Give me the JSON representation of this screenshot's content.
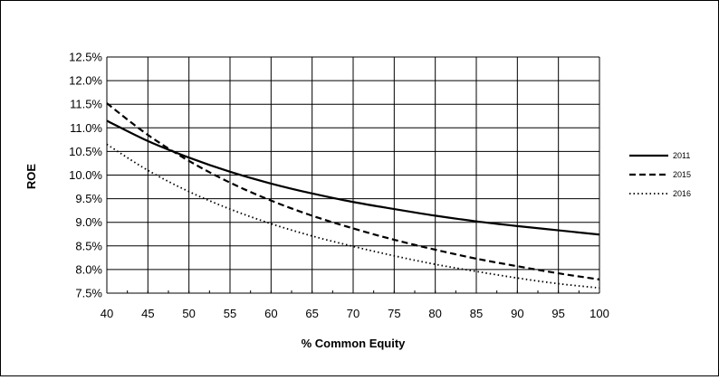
{
  "chart_data": {
    "type": "line",
    "title": "",
    "xlabel": "% Common Equity",
    "ylabel": "ROE",
    "xlim": [
      40,
      100
    ],
    "ylim": [
      7.5,
      12.5
    ],
    "x_ticks": [
      "40",
      "45",
      "50",
      "55",
      "60",
      "65",
      "70",
      "75",
      "80",
      "85",
      "90",
      "95",
      "100"
    ],
    "y_ticks": [
      "7.5%",
      "8.0%",
      "8.5%",
      "9.0%",
      "9.5%",
      "10.0%",
      "10.5%",
      "11.0%",
      "11.5%",
      "12.0%",
      "12.5%"
    ],
    "grid": true,
    "legend_position": "right",
    "x": [
      40,
      45,
      50,
      55,
      60,
      65,
      70,
      75,
      80,
      85,
      90,
      95,
      100
    ],
    "series": [
      {
        "name": "2011",
        "style": "solid",
        "values": [
          11.15,
          10.72,
          10.37,
          10.07,
          9.82,
          9.61,
          9.43,
          9.28,
          9.14,
          9.02,
          8.92,
          8.83,
          8.74
        ]
      },
      {
        "name": "2015",
        "style": "dashed",
        "values": [
          11.52,
          10.85,
          10.3,
          9.84,
          9.46,
          9.14,
          8.87,
          8.63,
          8.42,
          8.23,
          8.07,
          7.92,
          7.79
        ]
      },
      {
        "name": "2016",
        "style": "dotted",
        "values": [
          10.65,
          10.1,
          9.65,
          9.28,
          8.97,
          8.71,
          8.49,
          8.29,
          8.11,
          7.96,
          7.82,
          7.7,
          7.61
        ]
      }
    ]
  }
}
